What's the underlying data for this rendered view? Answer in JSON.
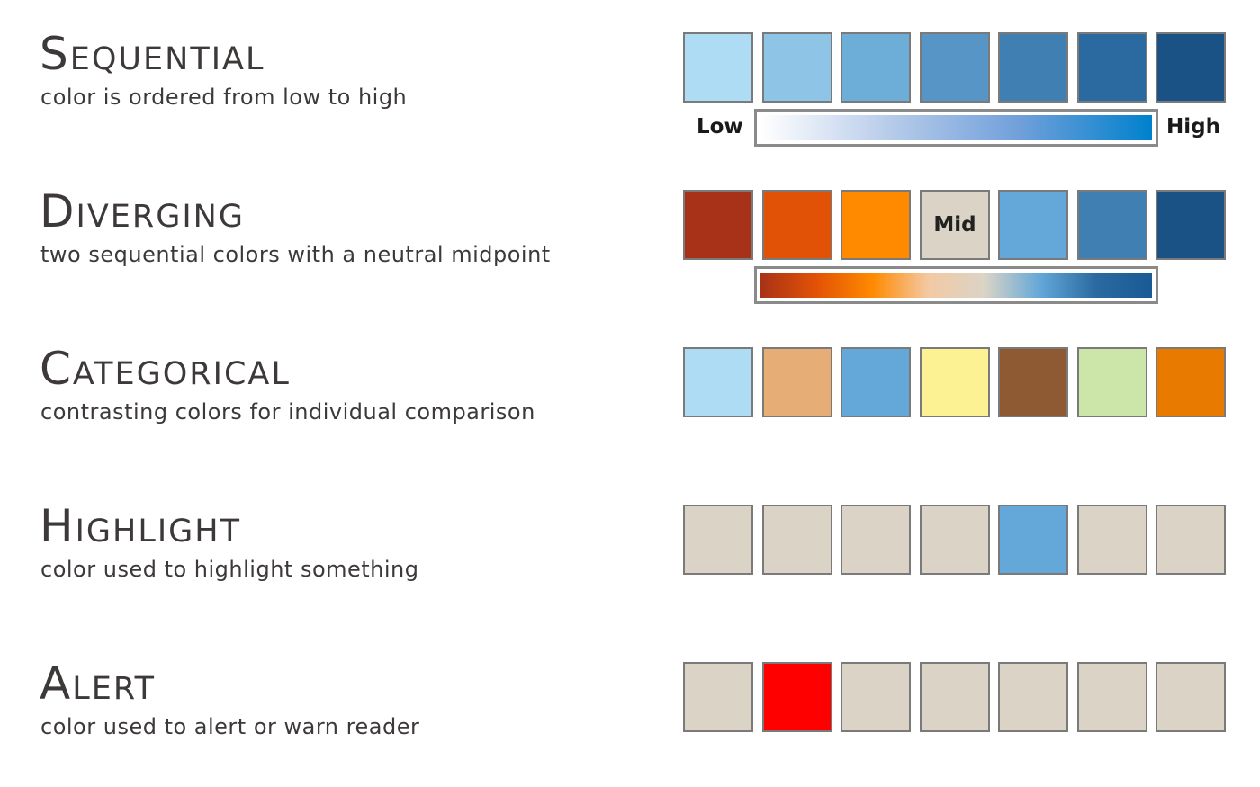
{
  "sections": [
    {
      "title": "Sequential",
      "description": "color is ordered from low to high",
      "swatches": [
        {
          "color": "#aedcf4"
        },
        {
          "color": "#8ec4e6"
        },
        {
          "color": "#6daed9"
        },
        {
          "color": "#5695c5"
        },
        {
          "color": "#3f7fb2"
        },
        {
          "color": "#2a6aa0"
        },
        {
          "color": "#1a5285"
        }
      ],
      "ramp": {
        "colors": [
          "#ffffff",
          "#b6cbe9",
          "#6f9fda",
          "#0081cd"
        ],
        "low_label": "Low",
        "high_label": "High"
      }
    },
    {
      "title": "Diverging",
      "description": "two sequential colors with a neutral midpoint",
      "swatches": [
        {
          "color": "#a83217"
        },
        {
          "color": "#e25206"
        },
        {
          "color": "#ff8a00"
        },
        {
          "color": "#dbd4c6",
          "label": "Mid"
        },
        {
          "color": "#63a8d8"
        },
        {
          "color": "#3f7fb2"
        },
        {
          "color": "#1a5285"
        }
      ],
      "ramp": {
        "colors": [
          "#a83217",
          "#e25206",
          "#ff8a00",
          "#f3c9a3",
          "#dbd4c6",
          "#63a8d8",
          "#2a6aa0",
          "#1a5a95"
        ]
      }
    },
    {
      "title": "Categorical",
      "description": "contrasting colors for individual comparison",
      "swatches": [
        {
          "color": "#aedcf4"
        },
        {
          "color": "#e6ae76"
        },
        {
          "color": "#63a8d8"
        },
        {
          "color": "#fcf294"
        },
        {
          "color": "#8d5a33"
        },
        {
          "color": "#cbe6a8"
        },
        {
          "color": "#e87a00"
        }
      ]
    },
    {
      "title": "Highlight",
      "description": "color used to highlight something",
      "swatches": [
        {
          "color": "#dbd4c6"
        },
        {
          "color": "#dbd4c6"
        },
        {
          "color": "#dbd4c6"
        },
        {
          "color": "#dbd4c6"
        },
        {
          "color": "#63a8d8"
        },
        {
          "color": "#dbd4c6"
        },
        {
          "color": "#dbd4c6"
        }
      ]
    },
    {
      "title": "Alert",
      "description": "color used to alert or warn reader",
      "swatches": [
        {
          "color": "#dbd4c6"
        },
        {
          "color": "#ff0000"
        },
        {
          "color": "#dbd4c6"
        },
        {
          "color": "#dbd4c6"
        },
        {
          "color": "#dbd4c6"
        },
        {
          "color": "#dbd4c6"
        },
        {
          "color": "#dbd4c6"
        }
      ]
    }
  ]
}
